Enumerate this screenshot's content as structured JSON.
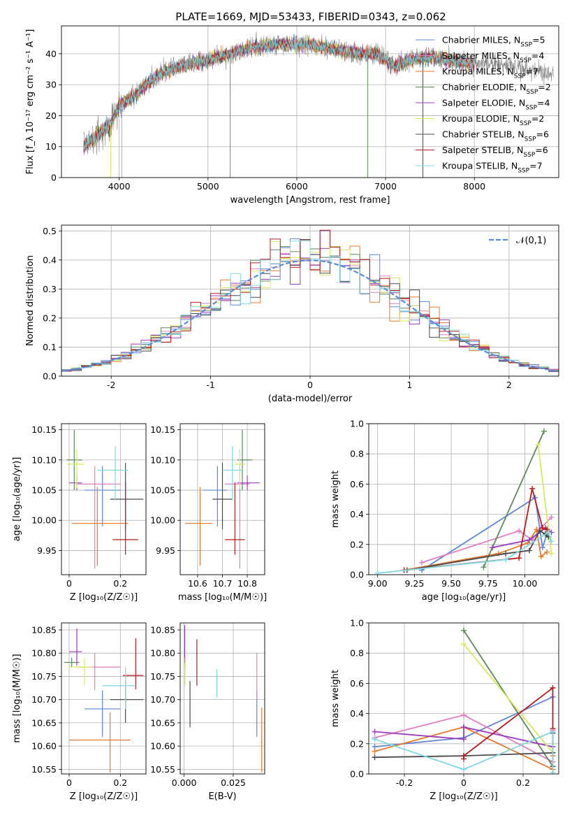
{
  "figure": {
    "title": "PLATE=1669, MJD=53433, FIBERID=0343, z=0.062"
  },
  "colors": {
    "Chabrier MILES": "#5b86d8",
    "Salpeter MILES": "#e07fbf",
    "Kroupa MILES": "#e77a2a",
    "Chabrier ELODIE": "#5a8a5a",
    "Salpeter ELODIE": "#9b3cc0",
    "Kroupa ELODIE": "#d8e85a",
    "Chabrier STELIB": "#4a4a4a",
    "Salpeter STELIB": "#b71c1c",
    "Kroupa STELIB": "#7fd8e0",
    "data": "#808080",
    "gaussian": "#5b8dd6"
  },
  "chart_data": [
    {
      "id": "spectrum",
      "type": "line",
      "xlabel": "wavelength [Angstrom, rest frame]",
      "ylabel": "Flux [f_λ 10⁻¹⁷ erg cm⁻² s⁻¹ A⁻¹]",
      "xlim": [
        3350,
        8950
      ],
      "ylim": [
        0,
        49
      ],
      "xticks": [
        4000,
        5000,
        6000,
        7000,
        8000
      ],
      "yticks": [
        0,
        10,
        20,
        30,
        40
      ],
      "legend_position": "top-right",
      "legend": [
        {
          "name": "Chabrier MILES",
          "nssp": "5"
        },
        {
          "name": "Salpeter MILES",
          "nssp": "4"
        },
        {
          "name": "Kroupa MILES",
          "nssp": "7"
        },
        {
          "name": "Chabrier ELODIE",
          "nssp": "2"
        },
        {
          "name": "Salpeter ELODIE",
          "nssp": "4"
        },
        {
          "name": "Kroupa ELODIE",
          "nssp": "2"
        },
        {
          "name": "Chabrier STELIB",
          "nssp": "6"
        },
        {
          "name": "Salpeter STELIB",
          "nssp": "6"
        },
        {
          "name": "Kroupa STELIB",
          "nssp": "7"
        }
      ],
      "continuum": [
        [
          3600,
          10
        ],
        [
          3700,
          12
        ],
        [
          3800,
          15
        ],
        [
          3900,
          17
        ],
        [
          4000,
          23
        ],
        [
          4100,
          25
        ],
        [
          4200,
          27
        ],
        [
          4300,
          30
        ],
        [
          4400,
          32
        ],
        [
          4500,
          34
        ],
        [
          4700,
          36
        ],
        [
          5000,
          38
        ],
        [
          5250,
          40
        ],
        [
          5500,
          42
        ],
        [
          5800,
          43
        ],
        [
          6100,
          43
        ],
        [
          6300,
          42
        ],
        [
          6500,
          41
        ],
        [
          6700,
          40
        ],
        [
          6900,
          40
        ],
        [
          7100,
          36
        ],
        [
          7300,
          38
        ],
        [
          7500,
          39
        ],
        [
          7700,
          38
        ],
        [
          7900,
          37
        ],
        [
          8100,
          37
        ],
        [
          8400,
          36
        ],
        [
          8600,
          35
        ],
        [
          8800,
          34
        ],
        [
          8890,
          33
        ]
      ],
      "model_extent": [
        3600,
        8000
      ],
      "data_extent": [
        3600,
        8890
      ]
    },
    {
      "id": "residuals",
      "type": "line",
      "xlabel": "(data-model)/error",
      "ylabel": "Normed distribution",
      "xlim": [
        -2.5,
        2.5
      ],
      "ylim": [
        0,
        0.52
      ],
      "xticks": [
        -2,
        -1,
        0,
        1,
        2
      ],
      "yticks": [
        0.0,
        0.1,
        0.2,
        0.3,
        0.4,
        0.5
      ],
      "legend": "𝒩(0,1)",
      "legend_position": "top-right",
      "bin_width": 0.1,
      "series": [
        "Chabrier MILES",
        "Salpeter MILES",
        "Kroupa MILES",
        "Chabrier ELODIE",
        "Salpeter ELODIE",
        "Kroupa ELODIE",
        "Chabrier STELIB",
        "Salpeter STELIB",
        "Kroupa STELIB"
      ]
    },
    {
      "id": "age_vs_Z",
      "type": "scatter",
      "xlabel": "Z [log₁₀(Z/Z☉)]",
      "ylabel": "age  [log₁₀(age/yr)]",
      "xlim": [
        -0.03,
        0.3
      ],
      "ylim": [
        9.91,
        10.16
      ],
      "xticks": [
        0.0,
        0.2
      ],
      "yticks": [
        9.95,
        10.0,
        10.05,
        10.1,
        10.15
      ],
      "points": [
        {
          "series": "Chabrier MILES",
          "x": 0.13,
          "y": 10.05,
          "xerr": [
            0.07,
            0.07
          ],
          "yerr": [
            0.06,
            0.04
          ]
        },
        {
          "series": "Salpeter MILES",
          "x": 0.1,
          "y": 10.06,
          "xerr": [
            0.07,
            0.1
          ],
          "yerr": [
            0.14,
            0.03
          ]
        },
        {
          "series": "Kroupa MILES",
          "x": 0.11,
          "y": 9.995,
          "xerr": [
            0.1,
            0.12
          ],
          "yerr": [
            0.07,
            0.06
          ]
        },
        {
          "series": "Chabrier ELODIE",
          "x": 0.02,
          "y": 10.1,
          "xerr": [
            0.03,
            0.03
          ],
          "yerr": [
            0.05,
            0.05
          ]
        },
        {
          "series": "Salpeter ELODIE",
          "x": 0.03,
          "y": 10.062,
          "xerr": [
            0.03,
            0.02
          ],
          "yerr": [
            0.012,
            0.012
          ]
        },
        {
          "series": "Kroupa ELODIE",
          "x": 0.03,
          "y": 10.093,
          "xerr": [
            0.04,
            0.03
          ],
          "yerr": [
            0.04,
            0.025
          ]
        },
        {
          "series": "Chabrier STELIB",
          "x": 0.22,
          "y": 10.035,
          "xerr": [
            0.06,
            0.07
          ],
          "yerr": [
            0.05,
            0.06
          ]
        },
        {
          "series": "Salpeter STELIB",
          "x": 0.22,
          "y": 9.968,
          "xerr": [
            0.05,
            0.05
          ],
          "yerr": [
            0.025,
            0.095
          ]
        },
        {
          "series": "Kroupa STELIB",
          "x": 0.18,
          "y": 10.083,
          "xerr": [
            0.07,
            0.05
          ],
          "yerr": [
            0.05,
            0.04
          ]
        }
      ]
    },
    {
      "id": "age_vs_mass",
      "type": "scatter",
      "xlabel": "mass [log₁₀(M/M☉)]",
      "ylabel": "",
      "xlim": [
        10.53,
        10.87
      ],
      "ylim": [
        9.91,
        10.16
      ],
      "xticks": [
        10.6,
        10.7,
        10.8
      ],
      "yticks": [
        9.95,
        10.0,
        10.05,
        10.1,
        10.15
      ],
      "points": [
        {
          "series": "Chabrier MILES",
          "x": 10.68,
          "y": 10.05,
          "xerr": [
            0.06,
            0.04
          ],
          "yerr": [
            0.06,
            0.04
          ]
        },
        {
          "series": "Salpeter MILES",
          "x": 10.77,
          "y": 10.06,
          "xerr": [
            0.06,
            0.04
          ],
          "yerr": [
            0.14,
            0.03
          ]
        },
        {
          "series": "Kroupa MILES",
          "x": 10.61,
          "y": 9.995,
          "xerr": [
            0.06,
            0.05
          ],
          "yerr": [
            0.07,
            0.06
          ]
        },
        {
          "series": "Chabrier ELODIE",
          "x": 10.78,
          "y": 10.1,
          "xerr": [
            0.02,
            0.04
          ],
          "yerr": [
            0.05,
            0.05
          ]
        },
        {
          "series": "Salpeter ELODIE",
          "x": 10.8,
          "y": 10.062,
          "xerr": [
            0.04,
            0.05
          ],
          "yerr": [
            0.012,
            0.012
          ]
        },
        {
          "series": "Kroupa ELODIE",
          "x": 10.77,
          "y": 10.093,
          "xerr": [
            0.02,
            0.02
          ],
          "yerr": [
            0.04,
            0.025
          ]
        },
        {
          "series": "Chabrier STELIB",
          "x": 10.7,
          "y": 10.035,
          "xerr": [
            0.04,
            0.04
          ],
          "yerr": [
            0.05,
            0.06
          ]
        },
        {
          "series": "Salpeter STELIB",
          "x": 10.75,
          "y": 9.968,
          "xerr": [
            0.04,
            0.04
          ],
          "yerr": [
            0.025,
            0.095
          ]
        },
        {
          "series": "Kroupa STELIB",
          "x": 10.74,
          "y": 10.083,
          "xerr": [
            0.04,
            0.04
          ],
          "yerr": [
            0.05,
            0.04
          ]
        }
      ]
    },
    {
      "id": "weight_vs_age",
      "type": "line",
      "xlabel": "age  [log₁₀(age/yr)]",
      "ylabel": "mass weight",
      "xlim": [
        8.94,
        10.23
      ],
      "ylim": [
        0.0,
        1.0
      ],
      "xticks": [
        9.0,
        9.25,
        9.5,
        9.75,
        10.0
      ],
      "xticklabels": [
        "9.00",
        "9.25",
        "9.50",
        "9.75",
        "10.00"
      ],
      "yticks": [
        0.0,
        0.2,
        0.4,
        0.6,
        0.8,
        1.0
      ],
      "series": [
        {
          "name": "Chabrier MILES",
          "x": [
            9.3,
            10.07,
            10.12,
            10.15
          ],
          "y": [
            0.03,
            0.51,
            0.18,
            0.27
          ]
        },
        {
          "name": "Salpeter MILES",
          "x": [
            9.3,
            9.96,
            10.05,
            10.11,
            10.18
          ],
          "y": [
            0.08,
            0.29,
            0.23,
            0.31,
            0.38
          ]
        },
        {
          "name": "Kroupa MILES",
          "x": [
            9.18,
            9.82,
            10.02,
            10.08,
            10.11,
            10.15
          ],
          "y": [
            0.03,
            0.14,
            0.21,
            0.3,
            0.12,
            0.15
          ]
        },
        {
          "name": "Chabrier ELODIE",
          "x": [
            9.72,
            10.13
          ],
          "y": [
            0.05,
            0.95
          ]
        },
        {
          "name": "Salpeter ELODIE",
          "x": [
            9.78,
            10.03,
            10.14,
            10.18
          ],
          "y": [
            0.18,
            0.23,
            0.31,
            0.28
          ]
        },
        {
          "name": "Kroupa ELODIE",
          "x": [
            10.09,
            10.18
          ],
          "y": [
            0.86,
            0.14
          ]
        },
        {
          "name": "Chabrier STELIB",
          "x": [
            9.2,
            9.87,
            10.03,
            10.1,
            10.14,
            10.16
          ],
          "y": [
            0.03,
            0.14,
            0.16,
            0.29,
            0.27,
            0.25
          ]
        },
        {
          "name": "Salpeter STELIB",
          "x": [
            9.18,
            9.96,
            10.05,
            10.12,
            10.15
          ],
          "y": [
            0.03,
            0.11,
            0.57,
            0.31,
            0.3
          ]
        },
        {
          "name": "Kroupa STELIB",
          "x": [
            9.0,
            9.87,
            10.16,
            10.18
          ],
          "y": [
            0.01,
            0.1,
            0.28,
            0.22
          ]
        }
      ]
    },
    {
      "id": "mass_vs_Z",
      "type": "scatter",
      "xlabel": "Z [log₁₀(Z/Z☉)]",
      "ylabel": "mass [log₁₀(M/M☉)]",
      "xlim": [
        -0.03,
        0.3
      ],
      "ylim": [
        10.54,
        10.865
      ],
      "xticks": [
        0.0,
        0.2
      ],
      "yticks": [
        10.55,
        10.6,
        10.65,
        10.7,
        10.75,
        10.8,
        10.85
      ],
      "points": [
        {
          "series": "Chabrier MILES",
          "x": 0.13,
          "y": 10.68,
          "xerr": [
            0.07,
            0.07
          ],
          "yerr": [
            0.06,
            0.04
          ]
        },
        {
          "series": "Salpeter MILES",
          "x": 0.1,
          "y": 10.77,
          "xerr": [
            0.07,
            0.1
          ],
          "yerr": [
            0.05,
            0.03
          ]
        },
        {
          "series": "Kroupa MILES",
          "x": 0.16,
          "y": 10.613,
          "xerr": [
            0.16,
            0.08
          ],
          "yerr": [
            0.07,
            0.06
          ]
        },
        {
          "series": "Chabrier ELODIE",
          "x": 0.01,
          "y": 10.78,
          "xerr": [
            0.03,
            0.03
          ],
          "yerr": [
            0.01,
            0.01
          ]
        },
        {
          "series": "Salpeter ELODIE",
          "x": 0.03,
          "y": 10.803,
          "xerr": [
            0.03,
            0.02
          ],
          "yerr": [
            0.03,
            0.05
          ]
        },
        {
          "series": "Kroupa ELODIE",
          "x": 0.06,
          "y": 10.77,
          "xerr": [
            0.06,
            0.03
          ],
          "yerr": [
            0.04,
            0.02
          ]
        },
        {
          "series": "Chabrier STELIB",
          "x": 0.22,
          "y": 10.7,
          "xerr": [
            0.06,
            0.07
          ],
          "yerr": [
            0.05,
            0.04
          ]
        },
        {
          "series": "Salpeter STELIB",
          "x": 0.26,
          "y": 10.752,
          "xerr": [
            0.05,
            0.03
          ],
          "yerr": [
            0.03,
            0.08
          ]
        },
        {
          "series": "Kroupa STELIB",
          "x": 0.22,
          "y": 10.73,
          "xerr": [
            0.09,
            0.04
          ],
          "yerr": [
            0.05,
            0.04
          ]
        }
      ]
    },
    {
      "id": "mass_vs_ebv",
      "type": "scatter",
      "xlabel": "E(B-V)",
      "ylabel": "",
      "xlim": [
        -0.002,
        0.041
      ],
      "ylim": [
        10.54,
        10.865
      ],
      "xticks": [
        0.0,
        0.025
      ],
      "xticklabels": [
        "0.000",
        "0.025"
      ],
      "yticks": [
        10.55,
        10.6,
        10.65,
        10.7,
        10.75,
        10.8,
        10.85
      ],
      "points": [
        {
          "series": "Chabrier MILES",
          "x": 0.037,
          "y": 10.68,
          "yerr": [
            0.06,
            0.04
          ]
        },
        {
          "series": "Salpeter MILES",
          "x": 0.037,
          "y": 10.75,
          "yerr": [
            0.05,
            0.05
          ]
        },
        {
          "series": "Kroupa MILES",
          "x": 0.0395,
          "y": 10.613,
          "yerr": [
            0.07,
            0.07
          ]
        },
        {
          "series": "Chabrier ELODIE",
          "x": 0.0005,
          "y": 10.78,
          "yerr": [
            0.01,
            0.01
          ]
        },
        {
          "series": "Salpeter ELODIE",
          "x": 0.0003,
          "y": 10.82,
          "yerr": [
            0.04,
            0.04
          ]
        },
        {
          "series": "Kroupa ELODIE",
          "x": 0.0005,
          "y": 10.77,
          "yerr": [
            0.04,
            0.02
          ]
        },
        {
          "series": "Chabrier STELIB",
          "x": 0.003,
          "y": 10.69,
          "yerr": [
            0.05,
            0.05
          ]
        },
        {
          "series": "Salpeter STELIB",
          "x": 0.0065,
          "y": 10.78,
          "yerr": [
            0.05,
            0.05
          ]
        },
        {
          "series": "Kroupa STELIB",
          "x": 0.0167,
          "y": 10.735,
          "yerr": [
            0.03,
            0.03
          ]
        }
      ]
    },
    {
      "id": "weight_vs_Z",
      "type": "line",
      "xlabel": "Z [log₁₀(Z/Z☉)]",
      "ylabel": "mass weight",
      "xlim": [
        -0.32,
        0.32
      ],
      "ylim": [
        0.0,
        1.0
      ],
      "xticks": [
        -0.2,
        0.0,
        0.2
      ],
      "yticks": [
        0.0,
        0.2,
        0.4,
        0.6,
        0.8,
        1.0
      ],
      "series": [
        {
          "name": "Chabrier MILES",
          "x": [
            -0.3,
            0.0,
            0.3
          ],
          "y": [
            0.18,
            0.24,
            0.51
          ]
        },
        {
          "name": "Salpeter MILES",
          "x": [
            -0.3,
            0.0,
            0.3,
            0.3
          ],
          "y": [
            0.24,
            0.39,
            0.08,
            0.29
          ]
        },
        {
          "name": "Kroupa MILES",
          "x": [
            -0.3,
            0.0,
            0.3,
            0.3
          ],
          "y": [
            0.15,
            0.31,
            0.03,
            0.12
          ]
        },
        {
          "name": "Chabrier ELODIE",
          "x": [
            0.0,
            0.3
          ],
          "y": [
            0.95,
            0.05
          ]
        },
        {
          "name": "Salpeter ELODIE",
          "x": [
            -0.3,
            0.0,
            0.0,
            0.3,
            0.3
          ],
          "y": [
            0.28,
            0.23,
            0.31,
            0.18,
            0.28
          ]
        },
        {
          "name": "Kroupa ELODIE",
          "x": [
            0.0,
            0.3
          ],
          "y": [
            0.86,
            0.14
          ]
        },
        {
          "name": "Chabrier STELIB",
          "x": [
            -0.3,
            0.0,
            0.3,
            0.3,
            0.3
          ],
          "y": [
            0.11,
            0.12,
            0.14,
            0.27,
            0.05
          ]
        },
        {
          "name": "Salpeter STELIB",
          "x": [
            0.0,
            0.0,
            0.3,
            0.3
          ],
          "y": [
            0.1,
            0.12,
            0.57,
            0.3
          ]
        },
        {
          "name": "Kroupa STELIB",
          "x": [
            -0.3,
            0.0,
            0.3,
            0.3
          ],
          "y": [
            0.23,
            0.03,
            0.28,
            0.01
          ]
        }
      ]
    }
  ]
}
